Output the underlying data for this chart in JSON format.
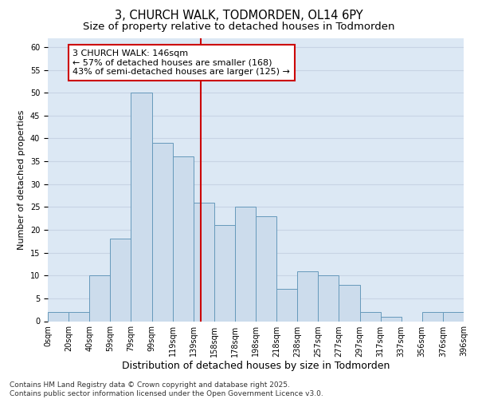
{
  "title_line1": "3, CHURCH WALK, TODMORDEN, OL14 6PY",
  "title_line2": "Size of property relative to detached houses in Todmorden",
  "xlabel": "Distribution of detached houses by size in Todmorden",
  "ylabel": "Number of detached properties",
  "bin_labels": [
    "0sqm",
    "20sqm",
    "40sqm",
    "59sqm",
    "79sqm",
    "99sqm",
    "119sqm",
    "139sqm",
    "158sqm",
    "178sqm",
    "198sqm",
    "218sqm",
    "238sqm",
    "257sqm",
    "277sqm",
    "297sqm",
    "317sqm",
    "337sqm",
    "356sqm",
    "376sqm",
    "396sqm"
  ],
  "bar_values": [
    2,
    2,
    10,
    18,
    50,
    39,
    36,
    26,
    21,
    25,
    23,
    7,
    11,
    10,
    8,
    2,
    1,
    0,
    2,
    2
  ],
  "bar_color": "#ccdcec",
  "bar_edge_color": "#6699bb",
  "vline_color": "#cc0000",
  "annotation_text": "3 CHURCH WALK: 146sqm\n← 57% of detached houses are smaller (168)\n43% of semi-detached houses are larger (125) →",
  "annotation_box_facecolor": "white",
  "annotation_box_edgecolor": "#cc0000",
  "ylim": [
    0,
    62
  ],
  "yticks": [
    0,
    5,
    10,
    15,
    20,
    25,
    30,
    35,
    40,
    45,
    50,
    55,
    60
  ],
  "grid_color": "#c8d4e4",
  "bg_color": "#dce8f4",
  "footer_text": "Contains HM Land Registry data © Crown copyright and database right 2025.\nContains public sector information licensed under the Open Government Licence v3.0.",
  "title_fontsize": 10.5,
  "subtitle_fontsize": 9.5,
  "xlabel_fontsize": 9,
  "ylabel_fontsize": 8,
  "tick_fontsize": 7,
  "annotation_fontsize": 8,
  "footer_fontsize": 6.5
}
